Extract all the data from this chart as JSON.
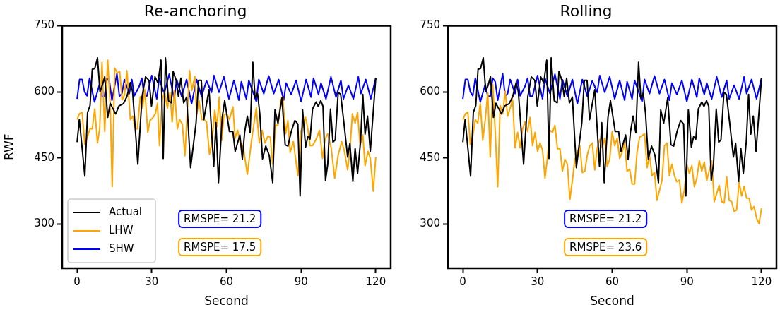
{
  "chart_data": [
    {
      "type": "line",
      "title": "Re-anchoring",
      "xlabel": "Second",
      "ylabel": "RWF",
      "xlim": [
        -6,
        126
      ],
      "xticks": [
        0,
        30,
        60,
        90,
        120
      ],
      "ylim": [
        200,
        750
      ],
      "yticks": [
        300,
        450,
        600,
        750
      ],
      "grid": false,
      "legend": "bottom left",
      "series": [
        {
          "name": "Actual",
          "color": "#000000",
          "x": [
            0,
            0.9,
            3.1,
            4.2,
            5.2,
            6.1,
            7.1,
            8.2,
            9.2,
            10.2,
            11.1,
            12.3,
            13.3,
            15.5,
            16.8,
            18.6,
            20,
            21.4,
            22.3,
            24.4,
            26.1,
            27.5,
            28.9,
            29.9,
            31.3,
            32.5,
            33.7,
            34.6,
            35.5,
            36.7,
            37.9,
            38.6,
            39.8,
            40.7,
            41.7,
            42.8,
            44,
            45.6,
            47.8,
            48.8,
            49.9,
            50.9,
            53,
            54.9,
            55.8,
            56.8,
            58.3,
            59.3,
            61.2,
            62.6,
            63.5,
            65.4,
            66.4,
            67.3,
            68.4,
            69.5,
            70.6,
            71.5,
            72.5,
            73.4,
            74.5,
            75.8,
            77.2,
            78.6,
            79.5,
            80.7,
            82.3,
            83.6,
            84.7,
            86.1,
            87.5,
            88.7,
            89.6,
            90.6,
            91.8,
            92.7,
            93.6,
            94.6,
            96,
            96.9,
            97.9,
            98.8,
            99.8,
            100.7,
            101.8,
            102.8,
            103.7,
            104.9,
            105.9,
            107.3,
            108.7,
            109.6,
            110.8,
            111.7,
            112.7,
            113.9,
            114.8,
            115.7,
            116.7,
            117.8,
            120
          ],
          "values": [
            486,
            537,
            409,
            553,
            569,
            651,
            653,
            677,
            600,
            616,
            634,
            542,
            574,
            550,
            568,
            573,
            589,
            621,
            600,
            436,
            589,
            634,
            626,
            568,
            634,
            620,
            672,
            449,
            677,
            580,
            575,
            646,
            626,
            590,
            631,
            575,
            588,
            428,
            530,
            626,
            626,
            537,
            605,
            431,
            530,
            394,
            542,
            580,
            510,
            510,
            465,
            502,
            447,
            508,
            545,
            507,
            667,
            586,
            596,
            551,
            448,
            477,
            456,
            394,
            559,
            529,
            586,
            480,
            477,
            511,
            535,
            527,
            364,
            559,
            475,
            498,
            493,
            561,
            577,
            567,
            580,
            567,
            399,
            436,
            561,
            486,
            491,
            599,
            594,
            525,
            452,
            483,
            397,
            472,
            415,
            489,
            594,
            504,
            545,
            465,
            631
          ]
        },
        {
          "name": "LHW",
          "color": "#ffa500",
          "x": [
            0,
            0.9,
            2,
            3.1,
            4.2,
            5.2,
            6.1,
            7.1,
            8.2,
            9.1,
            10,
            11.1,
            12.3,
            13.3,
            14.1,
            15.1,
            16.2,
            17.1,
            18.1,
            19,
            20,
            21.4,
            22.4,
            23.3,
            24.2,
            25.4,
            26.3,
            27.2,
            28.4,
            29.3,
            30.5,
            31.4,
            32.3,
            33.1,
            34.2,
            35.1,
            36.3,
            37.3,
            38.2,
            39.1,
            40.3,
            41.2,
            42.3,
            43.3,
            45.2,
            46.1,
            47.3,
            48.1,
            49,
            50.1,
            51.1,
            52,
            53.2,
            54.3,
            55.3,
            56.2,
            57.1,
            58.1,
            59,
            60.2,
            61.2,
            62.6,
            63.5,
            64.5,
            65.4,
            66.8,
            68.4,
            70.1,
            72,
            73.2,
            74.3,
            75.5,
            76.7,
            77.6,
            78.6,
            79.8,
            80.7,
            81.9,
            82.6,
            83.8,
            84.7,
            85.6,
            86.9,
            88.7,
            89.9,
            90.8,
            91.8,
            92.7,
            93.6,
            94.6,
            96,
            97.4,
            98.6,
            99.6,
            100.7,
            102.1,
            103.5,
            104.9,
            106.3,
            107.3,
            108.7,
            109.6,
            110.6,
            111.7,
            112.7,
            113.7,
            114.8,
            115.7,
            116.9,
            117.8,
            119,
            120
          ],
          "values": [
            537,
            550,
            554,
            481,
            500,
            516,
            516,
            561,
            484,
            518,
            667,
            510,
            672,
            571,
            385,
            654,
            643,
            646,
            582,
            592,
            648,
            537,
            545,
            516,
            516,
            589,
            563,
            605,
            508,
            535,
            542,
            550,
            574,
            478,
            580,
            601,
            563,
            598,
            532,
            603,
            516,
            537,
            526,
            455,
            648,
            603,
            635,
            550,
            580,
            537,
            537,
            532,
            458,
            490,
            558,
            521,
            588,
            490,
            548,
            550,
            537,
            566,
            495,
            513,
            487,
            473,
            413,
            490,
            564,
            484,
            513,
            484,
            500,
            497,
            436,
            524,
            524,
            582,
            588,
            505,
            535,
            463,
            487,
            410,
            510,
            526,
            542,
            516,
            478,
            478,
            492,
            513,
            449,
            492,
            505,
            473,
            404,
            457,
            487,
            468,
            423,
            468,
            550,
            529,
            553,
            478,
            502,
            433,
            465,
            449,
            375,
            452
          ]
        },
        {
          "name": "SHW",
          "color": "#0000ff",
          "x": [
            0,
            1,
            2,
            3,
            4,
            5,
            7,
            9,
            10,
            11,
            12,
            13,
            14,
            16,
            17,
            18,
            19,
            21,
            22,
            23,
            25,
            26,
            27,
            28,
            30,
            32,
            33,
            35,
            37,
            39,
            40,
            42,
            44,
            46,
            48,
            50,
            52,
            54,
            55,
            57,
            59,
            61,
            63,
            65,
            66,
            68,
            69,
            72,
            73,
            75,
            77,
            79,
            81,
            83,
            84,
            86,
            88,
            90,
            92,
            94,
            95,
            97,
            98,
            100,
            102,
            104,
            106,
            107,
            109,
            111,
            113,
            114,
            116,
            118,
            120
          ],
          "values": [
            584,
            628,
            628,
            600,
            591,
            631,
            577,
            617,
            590,
            590,
            631,
            623,
            581,
            641,
            590,
            596,
            628,
            596,
            628,
            591,
            613,
            631,
            590,
            590,
            637,
            584,
            631,
            596,
            640,
            584,
            628,
            590,
            628,
            573,
            628,
            590,
            625,
            599,
            637,
            599,
            634,
            584,
            626,
            581,
            623,
            584,
            626,
            578,
            628,
            596,
            636,
            596,
            628,
            581,
            620,
            594,
            626,
            578,
            628,
            588,
            631,
            594,
            620,
            584,
            634,
            588,
            626,
            584,
            615,
            584,
            634,
            596,
            628,
            584,
            631
          ]
        }
      ],
      "annotations": [
        "RMSPE= 21.2",
        "RMSPE= 17.5"
      ]
    },
    {
      "type": "line",
      "title": "Rolling",
      "xlabel": "Second",
      "xlim": [
        -6,
        126
      ],
      "xticks": [
        0,
        30,
        60,
        90,
        120
      ],
      "ylim": [
        200,
        750
      ],
      "yticks": [
        300,
        450,
        600,
        750
      ],
      "grid": false,
      "series": [
        {
          "color": "#000000",
          "x": [
            0,
            0.9,
            3.1,
            4.2,
            5.2,
            6.1,
            7.1,
            8.2,
            9.2,
            10.2,
            11.1,
            12.3,
            13.3,
            15.5,
            16.8,
            18.6,
            20,
            21.4,
            22.3,
            24.4,
            26.1,
            27.5,
            28.9,
            29.9,
            31.3,
            32.5,
            33.7,
            34.6,
            35.5,
            36.7,
            37.9,
            38.6,
            39.8,
            40.7,
            41.7,
            42.8,
            44,
            45.6,
            47.8,
            48.8,
            49.9,
            50.9,
            53,
            54.9,
            55.8,
            56.8,
            58.3,
            59.3,
            61.2,
            62.6,
            63.5,
            65.4,
            66.4,
            67.3,
            68.4,
            69.5,
            70.6,
            71.5,
            72.5,
            73.4,
            74.5,
            75.8,
            77.2,
            78.6,
            79.5,
            80.7,
            82.3,
            83.6,
            84.7,
            86.1,
            87.5,
            88.7,
            89.6,
            90.6,
            91.8,
            92.7,
            93.6,
            94.6,
            96,
            96.9,
            97.9,
            98.8,
            99.8,
            100.7,
            101.8,
            102.8,
            103.7,
            104.9,
            105.9,
            107.3,
            108.7,
            109.6,
            110.8,
            111.7,
            112.7,
            113.9,
            114.8,
            115.7,
            116.7,
            117.8,
            120
          ],
          "values": [
            486,
            537,
            409,
            553,
            569,
            651,
            653,
            677,
            600,
            616,
            634,
            542,
            574,
            550,
            568,
            573,
            589,
            621,
            600,
            436,
            589,
            634,
            626,
            568,
            634,
            620,
            672,
            449,
            677,
            580,
            575,
            646,
            626,
            590,
            631,
            575,
            588,
            428,
            530,
            626,
            626,
            537,
            605,
            431,
            530,
            394,
            542,
            580,
            510,
            510,
            465,
            502,
            447,
            508,
            545,
            507,
            667,
            586,
            596,
            551,
            448,
            477,
            456,
            394,
            559,
            529,
            586,
            480,
            477,
            511,
            535,
            527,
            364,
            559,
            475,
            498,
            493,
            561,
            577,
            567,
            580,
            567,
            399,
            436,
            561,
            486,
            491,
            599,
            594,
            525,
            452,
            483,
            397,
            472,
            415,
            489,
            594,
            504,
            545,
            465,
            631
          ]
        },
        {
          "color": "#ffa500",
          "x": [
            0,
            1,
            2,
            3,
            4,
            5,
            6,
            7,
            8,
            9,
            10,
            11,
            12,
            13,
            14,
            15,
            16,
            17,
            18,
            19,
            20,
            21,
            22,
            23,
            24,
            25,
            26,
            27,
            28,
            29,
            30,
            31,
            32,
            33,
            34,
            35,
            36,
            37,
            38,
            39,
            40,
            41,
            42,
            43,
            44,
            45,
            46,
            47,
            48,
            49,
            50,
            51,
            52,
            53,
            54,
            55,
            56,
            57,
            58,
            59,
            60,
            61,
            62,
            63,
            64,
            65,
            66,
            67,
            68,
            69,
            70,
            71,
            73,
            74,
            75,
            76,
            77,
            78,
            80,
            81,
            82,
            83,
            84,
            85,
            86,
            87,
            88,
            89,
            90,
            91,
            92,
            93,
            94,
            95,
            96,
            97,
            98,
            100,
            101,
            103,
            104,
            105,
            106,
            107,
            108,
            109,
            110,
            111,
            112,
            113,
            114,
            115,
            116,
            117,
            118,
            119,
            120
          ],
          "values": [
            537,
            550,
            554,
            481,
            500,
            537,
            529,
            574,
            490,
            537,
            598,
            452,
            617,
            510,
            385,
            569,
            550,
            601,
            545,
            563,
            582,
            473,
            508,
            473,
            516,
            532,
            510,
            542,
            478,
            508,
            465,
            484,
            468,
            404,
            452,
            513,
            508,
            524,
            471,
            471,
            420,
            447,
            436,
            356,
            399,
            447,
            463,
            478,
            417,
            420,
            457,
            478,
            484,
            423,
            473,
            492,
            473,
            495,
            431,
            447,
            510,
            478,
            495,
            449,
            463,
            484,
            420,
            425,
            391,
            391,
            463,
            497,
            505,
            428,
            457,
            410,
            417,
            354,
            399,
            478,
            484,
            410,
            436,
            410,
            396,
            400,
            348,
            378,
            436,
            415,
            433,
            385,
            404,
            444,
            420,
            441,
            399,
            444,
            351,
            388,
            351,
            348,
            407,
            354,
            351,
            329,
            332,
            396,
            364,
            385,
            359,
            359,
            332,
            340,
            314,
            301,
            336
          ]
        },
        {
          "color": "#0000ff",
          "x": [
            0,
            1,
            2,
            3,
            4,
            5,
            7,
            9,
            10,
            11,
            12,
            13,
            14,
            16,
            17,
            18,
            19,
            21,
            22,
            23,
            25,
            26,
            27,
            28,
            30,
            32,
            33,
            35,
            37,
            39,
            40,
            42,
            44,
            46,
            48,
            50,
            52,
            54,
            55,
            57,
            59,
            61,
            63,
            65,
            66,
            68,
            69,
            72,
            73,
            75,
            77,
            79,
            81,
            83,
            84,
            86,
            88,
            90,
            92,
            94,
            95,
            97,
            98,
            100,
            102,
            104,
            106,
            107,
            109,
            111,
            113,
            114,
            116,
            118,
            120
          ],
          "values": [
            584,
            628,
            628,
            600,
            591,
            631,
            577,
            617,
            590,
            590,
            631,
            623,
            581,
            641,
            590,
            596,
            628,
            596,
            628,
            591,
            613,
            631,
            590,
            590,
            637,
            584,
            631,
            596,
            640,
            584,
            628,
            590,
            628,
            573,
            628,
            590,
            625,
            599,
            637,
            599,
            634,
            584,
            626,
            581,
            623,
            584,
            626,
            578,
            628,
            596,
            636,
            596,
            628,
            581,
            620,
            594,
            626,
            578,
            628,
            588,
            631,
            594,
            620,
            584,
            634,
            588,
            626,
            584,
            615,
            584,
            634,
            596,
            628,
            584,
            631
          ]
        }
      ],
      "annotations": [
        "RMSPE= 21.2",
        "RMSPE= 23.6"
      ]
    }
  ]
}
